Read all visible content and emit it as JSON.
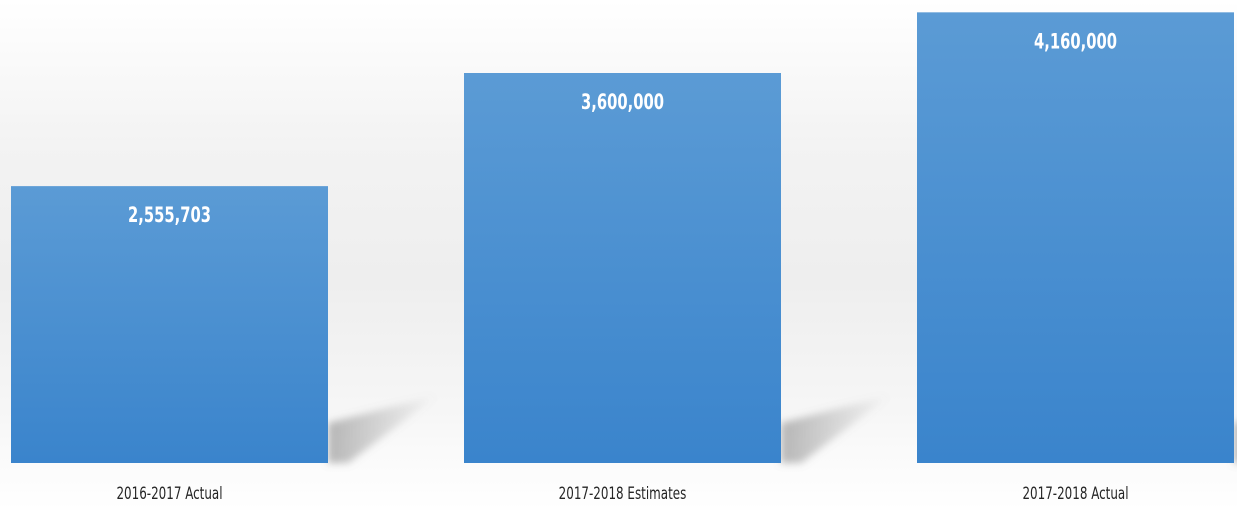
{
  "chart_data": {
    "type": "bar",
    "title": "",
    "xlabel": "",
    "ylabel": "",
    "categories": [
      "2016-2017 Actual",
      "2017-2018 Estimates",
      "2017-2018 Actual"
    ],
    "values": [
      2555703,
      3600000,
      4160000
    ],
    "data_labels": [
      "2,555,703",
      "3,600,000",
      "4,160,000"
    ],
    "ylim": [
      0,
      4200000
    ],
    "grid": false,
    "legend": "none",
    "colors": {
      "bar_top": "#5b9bd5",
      "bar_bottom": "#3a84cc",
      "data_label": "#ffffff",
      "category_label": "#262626",
      "shadow": "#7f7f7f"
    }
  }
}
